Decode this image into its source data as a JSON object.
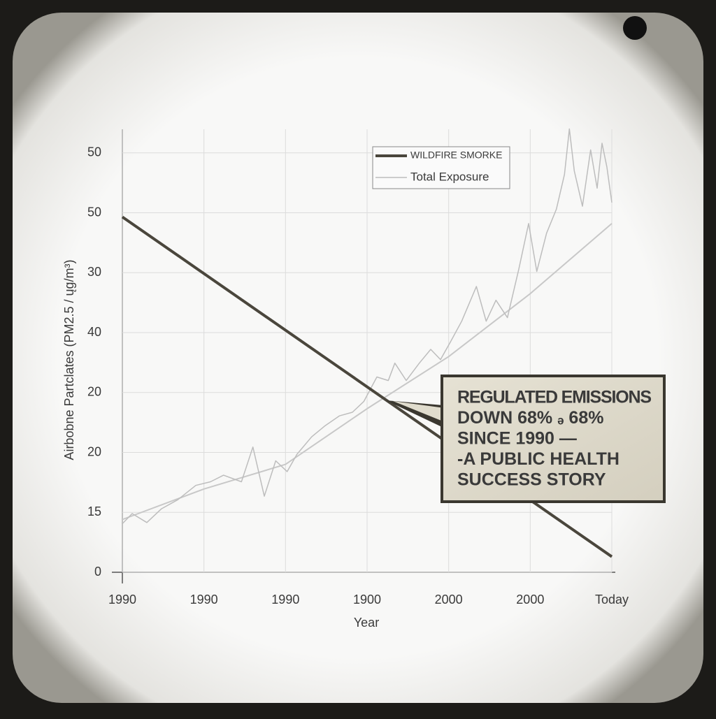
{
  "chart_data": {
    "type": "line",
    "x_label": "Year",
    "y_label": "Airbobne Partclates (PM2.5 / ųg/m³)",
    "xlim": [
      1990,
      2020
    ],
    "xticks": [
      {
        "value": 1990,
        "label": "1990"
      },
      {
        "value": 1995,
        "label": "1990"
      },
      {
        "value": 2000,
        "label": "1990"
      },
      {
        "value": 2005,
        "label": "1900"
      },
      {
        "value": 2010,
        "label": "2000"
      },
      {
        "value": 2015,
        "label": "2000"
      },
      {
        "value": 2020,
        "label": "Today"
      }
    ],
    "ylim": [
      0,
      74
    ],
    "yticks": [
      0,
      {
        "value": 10,
        "label": "15"
      },
      20,
      {
        "value": 30,
        "label": "20"
      },
      40,
      {
        "value": 50,
        "label": "30"
      },
      {
        "value": 60,
        "label": "50"
      },
      {
        "value": 70,
        "label": "50"
      }
    ],
    "grid": true,
    "legend": "upper-right",
    "series": [
      {
        "name": "WILDFIRE SMORKE",
        "color": "#4a463c",
        "width": 4,
        "x": [
          1990,
          2020
        ],
        "values": [
          59.3,
          2.6
        ]
      },
      {
        "name": "Total Exposure",
        "color": "#bdbdbd",
        "width": 1.5,
        "x": [
          1990,
          1990.6,
          1991.5,
          1992.4,
          1993.4,
          1994.5,
          1995.4,
          1996.2,
          1997.3,
          1998.0,
          1998.7,
          1999.4,
          2000.1,
          2000.7,
          2001.6,
          2002.4,
          2003.3,
          2004.1,
          2004.8,
          2005.6,
          2006.3,
          2006.7,
          2007.4,
          2008.2,
          2008.9,
          2009.5,
          2010.1,
          2010.8,
          2011.7,
          2012.3,
          2012.9,
          2013.6,
          2014.3,
          2014.9,
          2015.4,
          2016.0,
          2016.6,
          2017.1,
          2017.4,
          2017.7,
          2018.2,
          2018.7,
          2019.1,
          2019.4,
          2019.7,
          2020
        ],
        "values": [
          8.1,
          9.8,
          8.3,
          10.6,
          12.1,
          14.5,
          15.1,
          16.2,
          15.1,
          20.9,
          12.7,
          18.6,
          16.8,
          19.7,
          22.6,
          24.4,
          26.1,
          26.7,
          28.5,
          32.6,
          32.0,
          34.9,
          32.0,
          34.9,
          37.2,
          35.5,
          38.4,
          41.9,
          47.7,
          41.9,
          45.4,
          42.5,
          50.6,
          58.2,
          50.2,
          56.6,
          60.6,
          66.4,
          74.0,
          67.0,
          61.1,
          70.5,
          64.1,
          71.6,
          67.6,
          61.7
        ]
      },
      {
        "color": "#c8c8c8",
        "width": 2,
        "x": [
          1990,
          1995,
          2000,
          2005,
          2010,
          2015,
          2020
        ],
        "values": [
          8.8,
          13.9,
          18.0,
          27.3,
          36.0,
          46.5,
          58.2
        ]
      }
    ],
    "annotation": [
      "REGULATED EMISSIONS",
      "DOWN 68% ₔ 68%",
      "SINCE 1990 —",
      "-A PUBLIC HEALTH",
      "SUCCESS STORY"
    ]
  }
}
